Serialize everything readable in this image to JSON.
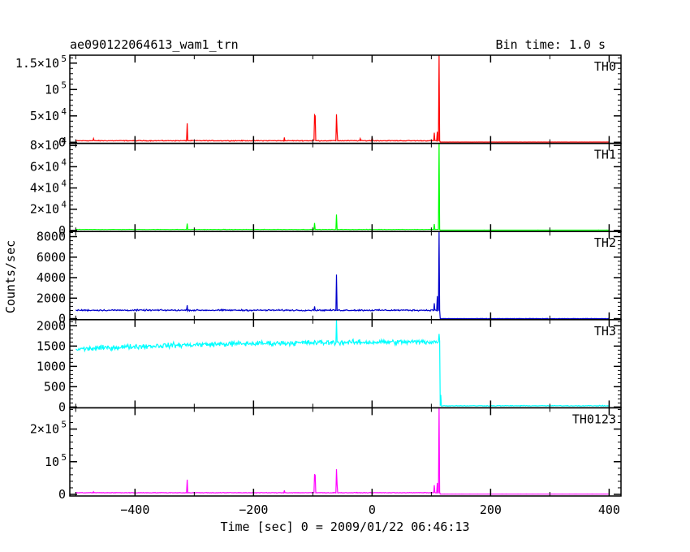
{
  "chart_data": {
    "type": "line",
    "title": "ae090122064613_wam1_trn",
    "bin_time": "Bin time: 1.0 s",
    "xlabel": "Time [sec] 0 = 2009/01/22 06:46:13",
    "ylabel": "Counts/sec",
    "xlim": [
      -510,
      420
    ],
    "x_ticks": [
      -400,
      -200,
      0,
      200,
      400
    ],
    "x_tick_labels": [
      "−400",
      "−200",
      "0",
      "200",
      "400"
    ],
    "panels": [
      {
        "name": "TH0",
        "color": "#ff0000",
        "ylim": [
          -2000,
          165000
        ],
        "y_ticks": [
          {
            "value": 150000,
            "base": "1.5×10",
            "exp": "5"
          },
          {
            "value": 100000,
            "base": "10",
            "exp": "5"
          },
          {
            "value": 50000,
            "base": "5×10",
            "exp": "4"
          },
          {
            "value": 0,
            "base": "0",
            "exp": ""
          }
        ],
        "baseline": 3000,
        "noise": 600,
        "trend": 0,
        "cutoff_x": 115,
        "after_level": 400,
        "after_noise": 40,
        "spikes": [
          {
            "x": -470,
            "y": 7000
          },
          {
            "x": -312,
            "y": 36000
          },
          {
            "x": -148,
            "y": 9000
          },
          {
            "x": -97,
            "y": 52000
          },
          {
            "x": -96,
            "y": 50000
          },
          {
            "x": -60,
            "y": 53000
          },
          {
            "x": -59,
            "y": 20000
          },
          {
            "x": -20,
            "y": 7000
          },
          {
            "x": 0,
            "y": 9000
          },
          {
            "x": 105,
            "y": 18000
          },
          {
            "x": 110,
            "y": 20000
          },
          {
            "x": 113,
            "y": 165000
          }
        ]
      },
      {
        "name": "TH1",
        "color": "#00ff00",
        "ylim": [
          -1000,
          82000
        ],
        "y_ticks": [
          {
            "value": 80000,
            "base": "8×10",
            "exp": "4"
          },
          {
            "value": 60000,
            "base": "6×10",
            "exp": "4"
          },
          {
            "value": 40000,
            "base": "4×10",
            "exp": "4"
          },
          {
            "value": 20000,
            "base": "2×10",
            "exp": "4"
          },
          {
            "value": 0,
            "base": "0",
            "exp": ""
          }
        ],
        "baseline": 900,
        "noise": 150,
        "trend": 0,
        "cutoff_x": 115,
        "after_level": 300,
        "after_noise": 30,
        "spikes": [
          {
            "x": -312,
            "y": 6500
          },
          {
            "x": -97,
            "y": 7000
          },
          {
            "x": -60,
            "y": 15000
          },
          {
            "x": 105,
            "y": 6000
          },
          {
            "x": 113,
            "y": 82000
          }
        ]
      },
      {
        "name": "TH2",
        "color": "#0000cc",
        "ylim": [
          -100,
          8500
        ],
        "y_ticks": [
          {
            "value": 8000,
            "base": "8000",
            "exp": ""
          },
          {
            "value": 6000,
            "base": "6000",
            "exp": ""
          },
          {
            "value": 4000,
            "base": "4000",
            "exp": ""
          },
          {
            "value": 2000,
            "base": "2000",
            "exp": ""
          },
          {
            "value": 0,
            "base": "0",
            "exp": ""
          }
        ],
        "baseline": 820,
        "noise": 60,
        "trend": 0,
        "cutoff_x": 115,
        "after_level": 0,
        "after_noise": 15,
        "spikes": [
          {
            "x": -312,
            "y": 1300
          },
          {
            "x": -97,
            "y": 1200
          },
          {
            "x": -60,
            "y": 4300
          },
          {
            "x": 105,
            "y": 1500
          },
          {
            "x": 110,
            "y": 2200
          },
          {
            "x": 113,
            "y": 8500
          }
        ]
      },
      {
        "name": "TH3",
        "color": "#00ffff",
        "ylim": [
          -20,
          2150
        ],
        "y_ticks": [
          {
            "value": 2000,
            "base": "2000",
            "exp": ""
          },
          {
            "value": 1500,
            "base": "1500",
            "exp": ""
          },
          {
            "value": 1000,
            "base": "1000",
            "exp": ""
          },
          {
            "value": 500,
            "base": "500",
            "exp": ""
          },
          {
            "value": 0,
            "base": "0",
            "exp": ""
          }
        ],
        "baseline": 1420,
        "noise": 55,
        "trend": 200,
        "cutoff_x": 115,
        "after_level": 30,
        "after_noise": 8,
        "spikes": [
          {
            "x": -60,
            "y": 2150
          },
          {
            "x": 113,
            "y": 1800
          },
          {
            "x": 116,
            "y": 300
          }
        ]
      },
      {
        "name": "TH0123",
        "color": "#ff00ff",
        "ylim": [
          -5000,
          265000
        ],
        "y_ticks": [
          {
            "value": 200000,
            "base": "2×10",
            "exp": "5"
          },
          {
            "value": 100000,
            "base": "10",
            "exp": "5"
          },
          {
            "value": 0,
            "base": "0",
            "exp": ""
          }
        ],
        "baseline": 5000,
        "noise": 700,
        "trend": 0,
        "cutoff_x": 115,
        "after_level": 800,
        "after_noise": 60,
        "spikes": [
          {
            "x": -470,
            "y": 8000
          },
          {
            "x": -312,
            "y": 45000
          },
          {
            "x": -148,
            "y": 12000
          },
          {
            "x": -97,
            "y": 62000
          },
          {
            "x": -96,
            "y": 58000
          },
          {
            "x": -60,
            "y": 77000
          },
          {
            "x": -59,
            "y": 30000
          },
          {
            "x": 105,
            "y": 28000
          },
          {
            "x": 110,
            "y": 35000
          },
          {
            "x": 113,
            "y": 265000
          }
        ]
      }
    ]
  }
}
